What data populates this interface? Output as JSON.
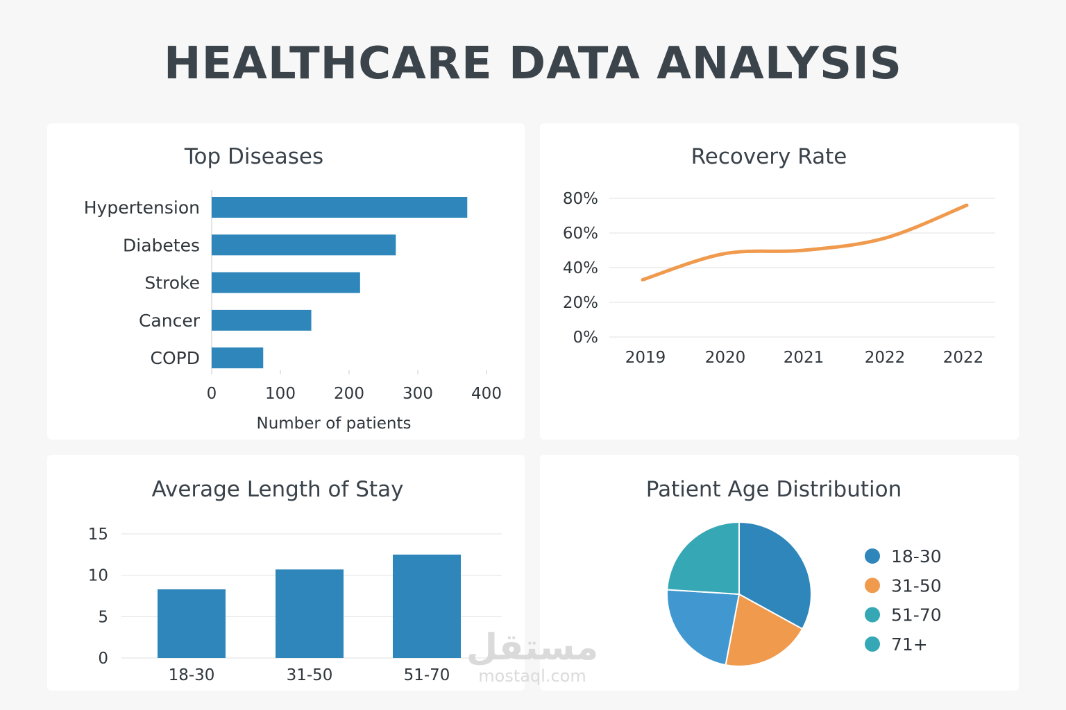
{
  "page": {
    "title": "HEALTHCARE DATA ANALYSIS"
  },
  "watermark": {
    "arabic": "مستقل",
    "latin": "mostaql.com"
  },
  "colors": {
    "blue": "#2e86bb",
    "orange": "#f09a4e",
    "teal": "#35a7b5",
    "light_blue": "#4198d0"
  },
  "chart_data": [
    {
      "id": "top-diseases",
      "type": "bar",
      "orientation": "horizontal",
      "title": "Top Diseases",
      "categories": [
        "Hypertension",
        "Diabetes",
        "Stroke",
        "Cancer",
        "COPD"
      ],
      "values": [
        372,
        268,
        216,
        145,
        75
      ],
      "xlabel": "Number of patients",
      "ylabel": "",
      "xlim": [
        0,
        400
      ],
      "xticks": [
        "0",
        "100",
        "200",
        "300",
        "400"
      ]
    },
    {
      "id": "recovery-rate",
      "type": "line",
      "title": "Recovery Rate",
      "categories": [
        "2019",
        "2020",
        "2021",
        "2022",
        "2022"
      ],
      "values": [
        33,
        48,
        50,
        57,
        76
      ],
      "ylim": [
        0,
        80
      ],
      "yticks": [
        "0%",
        "20%",
        "40%",
        "60%",
        "80%"
      ],
      "grid": true
    },
    {
      "id": "length-of-stay",
      "type": "bar",
      "orientation": "vertical",
      "title": "Average Length of Stay",
      "categories": [
        "18-30",
        "31-50",
        "51-70"
      ],
      "values": [
        8.3,
        10.7,
        12.5
      ],
      "ylim": [
        0,
        15
      ],
      "yticks": [
        "0",
        "5",
        "10",
        "15"
      ],
      "grid": true
    },
    {
      "id": "age-distribution",
      "type": "pie",
      "title": "Patient Age Distribution",
      "labels": [
        "18-30",
        "31-50",
        "51-70",
        "71+"
      ],
      "values": [
        33,
        20,
        23,
        24
      ],
      "slice_colors": [
        "#2e86bb",
        "#f09a4e",
        "#4198d0",
        "#35a7b5"
      ],
      "legend_labels": [
        "18-30",
        "31-50",
        "51-70",
        "71+"
      ],
      "legend_colors": [
        "#2e86bb",
        "#f09a4e",
        "#35a7b5",
        "#35a7b5"
      ],
      "legend": "right"
    }
  ]
}
